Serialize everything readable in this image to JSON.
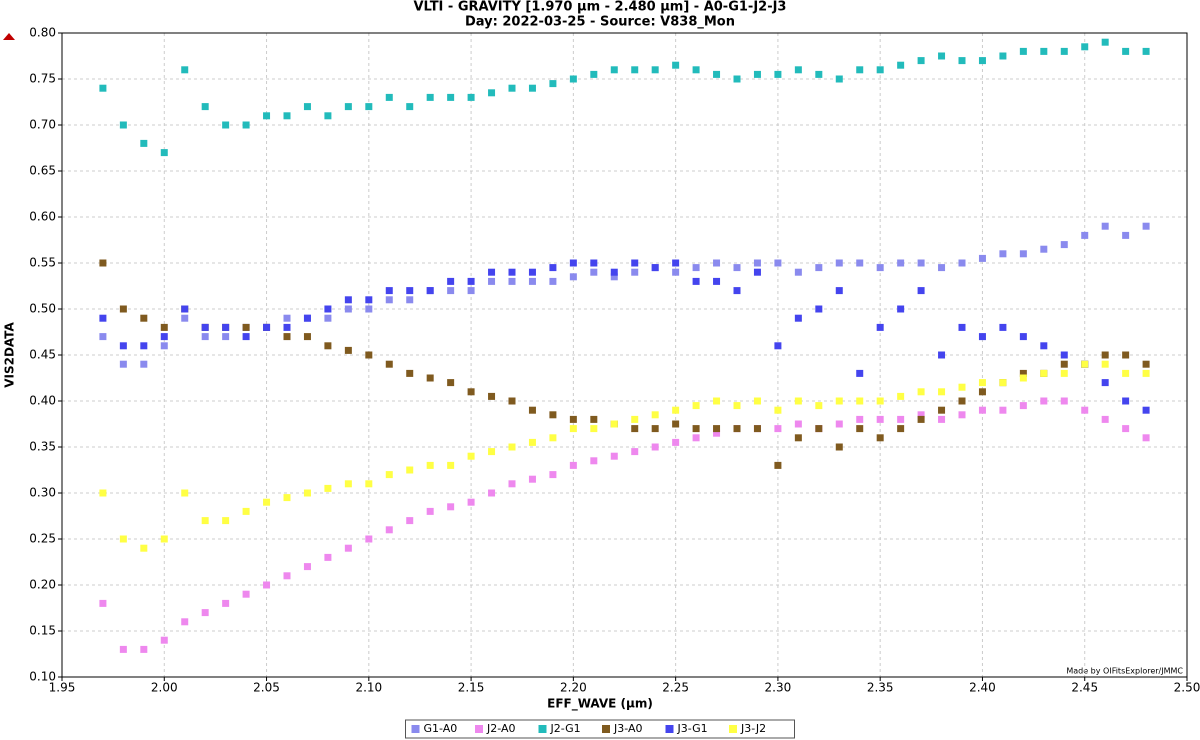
{
  "chart_data": {
    "type": "scatter",
    "title": "VLTI - GRAVITY [1.970 µm - 2.480 µm] - A0-G1-J2-J3",
    "subtitle": "Day: 2022-03-25 - Source: V838_Mon",
    "xlabel": "EFF_WAVE (µm)",
    "ylabel": "VIS2DATA",
    "annotation": "Made by OIFitsExplorer/JMMC",
    "grid": true,
    "legend": "bottom",
    "xlim": [
      1.95,
      2.5
    ],
    "xticks": [
      1.95,
      {
        "value": 2.0,
        "label": "2.00"
      },
      2.05,
      {
        "value": 2.1,
        "label": "2.10"
      },
      2.15,
      {
        "value": 2.2,
        "label": "2.20"
      },
      2.25,
      {
        "value": 2.3,
        "label": "2.30"
      },
      2.35,
      {
        "value": 2.4,
        "label": "2.40"
      },
      2.45,
      {
        "value": 2.5,
        "label": "2.50"
      }
    ],
    "ylim": [
      0.1,
      0.8
    ],
    "yticks": [
      {
        "value": 0.1,
        "label": "0.10"
      },
      0.15,
      {
        "value": 0.2,
        "label": "0.20"
      },
      0.25,
      {
        "value": 0.3,
        "label": "0.30"
      },
      0.35,
      {
        "value": 0.4,
        "label": "0.40"
      },
      0.45,
      {
        "value": 0.5,
        "label": "0.50"
      },
      0.55,
      {
        "value": 0.6,
        "label": "0.60"
      },
      0.65,
      {
        "value": 0.7,
        "label": "0.70"
      },
      0.75,
      {
        "value": 0.8,
        "label": "0.80"
      }
    ],
    "x": [
      1.97,
      1.98,
      1.99,
      2.0,
      2.01,
      2.02,
      2.03,
      2.04,
      2.05,
      2.06,
      2.07,
      2.08,
      2.09,
      2.1,
      2.11,
      2.12,
      2.13,
      2.14,
      2.15,
      2.16,
      2.17,
      2.18,
      2.19,
      2.2,
      2.21,
      2.22,
      2.23,
      2.24,
      2.25,
      2.26,
      2.27,
      2.28,
      2.29,
      2.3,
      2.31,
      2.32,
      2.33,
      2.34,
      2.35,
      2.36,
      2.37,
      2.38,
      2.39,
      2.4,
      2.41,
      2.42,
      2.43,
      2.44,
      2.45,
      2.46,
      2.47,
      2.48
    ],
    "series": [
      {
        "name": "G1-A0",
        "color": "#8a8aee",
        "values": [
          0.47,
          0.44,
          0.44,
          0.46,
          0.49,
          0.47,
          0.47,
          0.48,
          0.48,
          0.49,
          0.49,
          0.49,
          0.5,
          0.5,
          0.51,
          0.51,
          0.52,
          0.52,
          0.52,
          0.53,
          0.53,
          0.53,
          0.53,
          0.535,
          0.54,
          0.535,
          0.54,
          0.545,
          0.54,
          0.545,
          0.55,
          0.545,
          0.55,
          0.55,
          0.54,
          0.545,
          0.55,
          0.55,
          0.545,
          0.55,
          0.55,
          0.545,
          0.55,
          0.555,
          0.56,
          0.56,
          0.565,
          0.57,
          0.58,
          0.59,
          0.58,
          0.59
        ]
      },
      {
        "name": "J2-A0",
        "color": "#ee88ee",
        "values": [
          0.18,
          0.13,
          0.13,
          0.14,
          0.16,
          0.17,
          0.18,
          0.19,
          0.2,
          0.21,
          0.22,
          0.23,
          0.24,
          0.25,
          0.26,
          0.27,
          0.28,
          0.285,
          0.29,
          0.3,
          0.31,
          0.315,
          0.32,
          0.33,
          0.335,
          0.34,
          0.345,
          0.35,
          0.355,
          0.36,
          0.365,
          0.37,
          0.37,
          0.37,
          0.375,
          0.37,
          0.375,
          0.38,
          0.38,
          0.38,
          0.385,
          0.38,
          0.385,
          0.39,
          0.39,
          0.395,
          0.4,
          0.4,
          0.39,
          0.38,
          0.37,
          0.36
        ]
      },
      {
        "name": "J2-G1",
        "color": "#22bbbb",
        "values": [
          0.74,
          0.7,
          0.68,
          0.67,
          0.76,
          0.72,
          0.7,
          0.7,
          0.71,
          0.71,
          0.72,
          0.71,
          0.72,
          0.72,
          0.73,
          0.72,
          0.73,
          0.73,
          0.73,
          0.735,
          0.74,
          0.74,
          0.745,
          0.75,
          0.755,
          0.76,
          0.76,
          0.76,
          0.765,
          0.76,
          0.755,
          0.75,
          0.755,
          0.755,
          0.76,
          0.755,
          0.75,
          0.76,
          0.76,
          0.765,
          0.77,
          0.775,
          0.77,
          0.77,
          0.775,
          0.78,
          0.78,
          0.78,
          0.785,
          0.79,
          0.78,
          0.78
        ]
      },
      {
        "name": "J3-A0",
        "color": "#7f5a1f",
        "values": [
          0.55,
          0.5,
          0.49,
          0.48,
          0.5,
          0.48,
          0.48,
          0.48,
          0.48,
          0.47,
          0.47,
          0.46,
          0.455,
          0.45,
          0.44,
          0.43,
          0.425,
          0.42,
          0.41,
          0.405,
          0.4,
          0.39,
          0.385,
          0.38,
          0.38,
          0.375,
          0.37,
          0.37,
          0.375,
          0.37,
          0.37,
          0.37,
          0.37,
          0.33,
          0.36,
          0.37,
          0.35,
          0.37,
          0.36,
          0.37,
          0.38,
          0.39,
          0.4,
          0.41,
          0.42,
          0.43,
          0.43,
          0.44,
          0.44,
          0.45,
          0.45,
          0.44
        ]
      },
      {
        "name": "J3-G1",
        "color": "#4444ee",
        "values": [
          0.49,
          0.46,
          0.46,
          0.47,
          0.5,
          0.48,
          0.48,
          0.47,
          0.48,
          0.48,
          0.49,
          0.5,
          0.51,
          0.51,
          0.52,
          0.52,
          0.52,
          0.53,
          0.53,
          0.54,
          0.54,
          0.54,
          0.545,
          0.55,
          0.55,
          0.54,
          0.55,
          0.545,
          0.55,
          0.53,
          0.53,
          0.52,
          0.54,
          0.46,
          0.49,
          0.5,
          0.52,
          0.43,
          0.48,
          0.5,
          0.52,
          0.45,
          0.48,
          0.47,
          0.48,
          0.47,
          0.46,
          0.45,
          0.44,
          0.42,
          0.4,
          0.39
        ]
      },
      {
        "name": "J3-J2",
        "color": "#ffff44",
        "values": [
          0.3,
          0.25,
          0.24,
          0.25,
          0.3,
          0.27,
          0.27,
          0.28,
          0.29,
          0.295,
          0.3,
          0.305,
          0.31,
          0.31,
          0.32,
          0.325,
          0.33,
          0.33,
          0.34,
          0.345,
          0.35,
          0.355,
          0.36,
          0.37,
          0.37,
          0.375,
          0.38,
          0.385,
          0.39,
          0.395,
          0.4,
          0.395,
          0.4,
          0.39,
          0.4,
          0.395,
          0.4,
          0.4,
          0.4,
          0.405,
          0.41,
          0.41,
          0.415,
          0.42,
          0.42,
          0.425,
          0.43,
          0.43,
          0.44,
          0.44,
          0.43,
          0.43
        ]
      }
    ]
  }
}
